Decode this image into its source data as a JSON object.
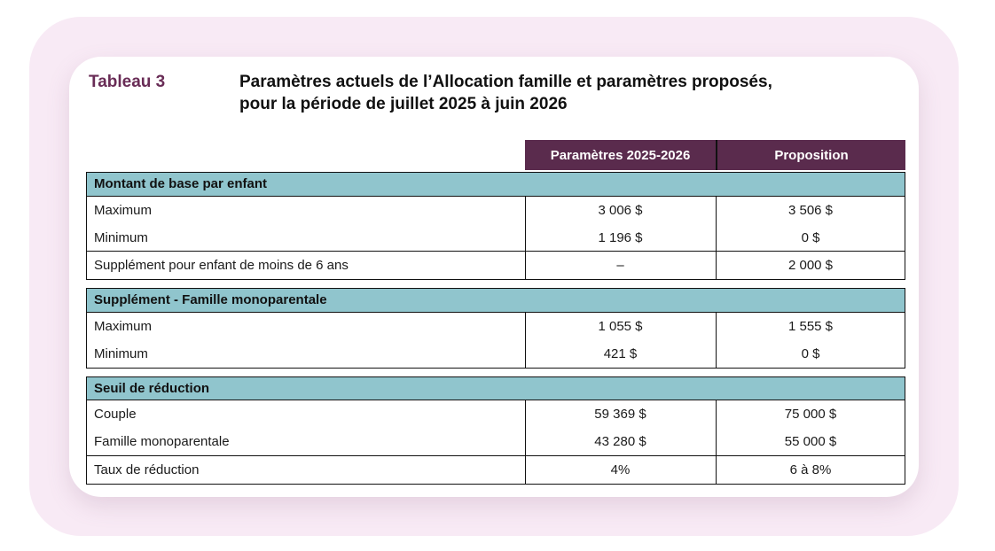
{
  "colors": {
    "page_bg": "#ffffff",
    "panel_pink": "#f8eaf5",
    "card_bg": "#ffffff",
    "header_purple": "#5a2b4d",
    "header_text": "#ffffff",
    "section_teal": "#90c5cd",
    "table_label_purple": "#692c56",
    "text": "#1a1a1a",
    "border": "#111111"
  },
  "title": {
    "label": "Tableau 3",
    "line1": "Paramètres actuels de l’Allocation famille et paramètres proposés,",
    "line2": "pour la période de juillet 2025 à juin 2026"
  },
  "table": {
    "columns": [
      "Paramètres 2025-2026",
      "Proposition"
    ],
    "sections": [
      {
        "header": "Montant de base par enfant",
        "body_rows": [
          {
            "label": "Maximum",
            "values": [
              "3 006 $",
              "3 506 $"
            ]
          },
          {
            "label": "Minimum",
            "values": [
              "1 196 $",
              "0 $"
            ]
          }
        ],
        "footer_rows": [
          {
            "label": "Supplément pour enfant de moins de 6 ans",
            "values": [
              "–",
              "2 000 $"
            ]
          }
        ]
      },
      {
        "header": "Supplément - Famille monoparentale",
        "body_rows": [
          {
            "label": "Maximum",
            "values": [
              "1 055 $",
              "1 555 $"
            ]
          },
          {
            "label": "Minimum",
            "values": [
              "421 $",
              "0 $"
            ]
          }
        ],
        "footer_rows": []
      },
      {
        "header": "Seuil de réduction",
        "body_rows": [
          {
            "label": "Couple",
            "values": [
              "59 369 $",
              "75 000 $"
            ]
          },
          {
            "label": "Famille monoparentale",
            "values": [
              "43 280 $",
              "55 000 $"
            ]
          }
        ],
        "footer_rows": [
          {
            "label": "Taux de réduction",
            "values": [
              "4%",
              "6 à 8%"
            ]
          }
        ]
      }
    ]
  }
}
